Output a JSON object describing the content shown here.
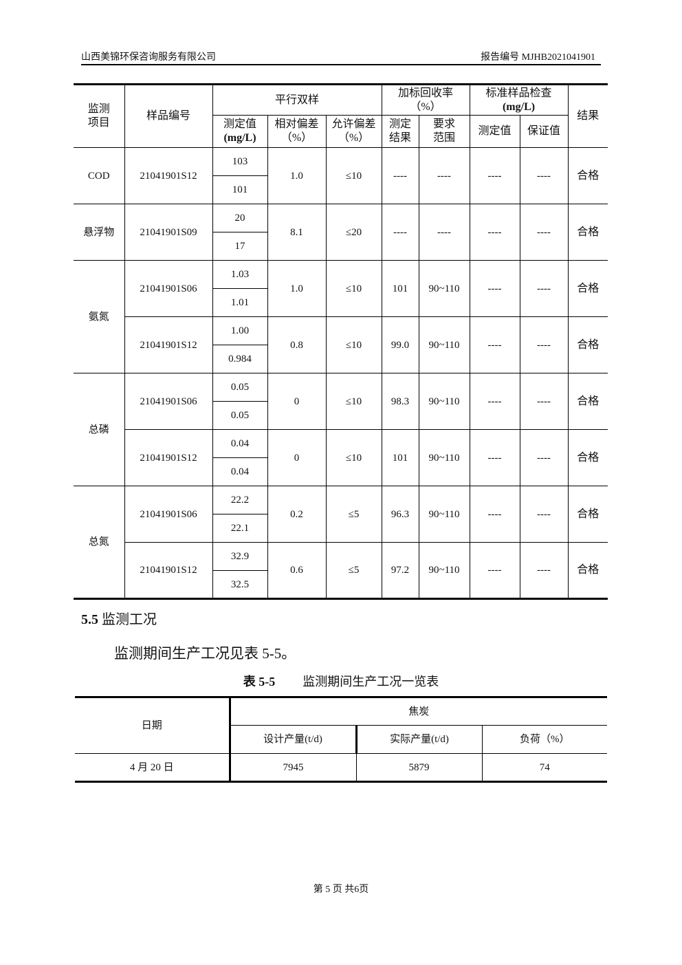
{
  "header": {
    "company": "山西美锦环保咨询服务有限公司",
    "report_no": "报告编号 MJHB2021041901"
  },
  "qc_table": {
    "headers": {
      "item": "监测项目",
      "sample_id": "样品编号",
      "parallel": "平行双样",
      "spike": "加标回收率",
      "spike_unit": "（%）",
      "std_check": "标准样品检查",
      "std_unit": "(mg/L)",
      "result": "结果",
      "measured": "测定值",
      "measured_unit": "(mg/L)",
      "rel_dev": "相对偏差（%）",
      "allow_dev": "允许偏差（%）",
      "spike_result": "测定结果",
      "spike_range": "要求范围",
      "std_measured": "测定值",
      "std_guarantee": "保证值"
    },
    "items": [
      {
        "name": "COD",
        "samples": [
          {
            "id": "21041901S12",
            "values": [
              "103",
              "101"
            ],
            "rel": "1.0",
            "allow": "≤10",
            "spike": "----",
            "range": "----",
            "std_m": "----",
            "std_g": "----",
            "result": "合格"
          }
        ]
      },
      {
        "name": "悬浮物",
        "samples": [
          {
            "id": "21041901S09",
            "values": [
              "20",
              "17"
            ],
            "rel": "8.1",
            "allow": "≤20",
            "spike": "----",
            "range": "----",
            "std_m": "----",
            "std_g": "----",
            "result": "合格"
          }
        ]
      },
      {
        "name": "氨氮",
        "samples": [
          {
            "id": "21041901S06",
            "values": [
              "1.03",
              "1.01"
            ],
            "rel": "1.0",
            "allow": "≤10",
            "spike": "101",
            "range": "90~110",
            "std_m": "----",
            "std_g": "----",
            "result": "合格"
          },
          {
            "id": "21041901S12",
            "values": [
              "1.00",
              "0.984"
            ],
            "rel": "0.8",
            "allow": "≤10",
            "spike": "99.0",
            "range": "90~110",
            "std_m": "----",
            "std_g": "----",
            "result": "合格"
          }
        ]
      },
      {
        "name": "总磷",
        "samples": [
          {
            "id": "21041901S06",
            "values": [
              "0.05",
              "0.05"
            ],
            "rel": "0",
            "allow": "≤10",
            "spike": "98.3",
            "range": "90~110",
            "std_m": "----",
            "std_g": "----",
            "result": "合格"
          },
          {
            "id": "21041901S12",
            "values": [
              "0.04",
              "0.04"
            ],
            "rel": "0",
            "allow": "≤10",
            "spike": "101",
            "range": "90~110",
            "std_m": "----",
            "std_g": "----",
            "result": "合格"
          }
        ]
      },
      {
        "name": "总氮",
        "samples": [
          {
            "id": "21041901S06",
            "values": [
              "22.2",
              "22.1"
            ],
            "rel": "0.2",
            "allow": "≤5",
            "spike": "96.3",
            "range": "90~110",
            "std_m": "----",
            "std_g": "----",
            "result": "合格"
          },
          {
            "id": "21041901S12",
            "values": [
              "32.9",
              "32.5"
            ],
            "rel": "0.6",
            "allow": "≤5",
            "spike": "97.2",
            "range": "90~110",
            "std_m": "----",
            "std_g": "----",
            "result": "合格"
          }
        ]
      }
    ]
  },
  "section": {
    "number": "5.5",
    "title": "监测工况",
    "paragraph": "监测期间生产工况见表 5-5。"
  },
  "caption": {
    "number": "表 5-5",
    "title": "监测期间生产工况一览表"
  },
  "prod_table": {
    "date_header": "日期",
    "group_header": "焦炭",
    "columns": [
      "设计产量(t/d)",
      "实际产量(t/d)",
      "负荷（%）"
    ],
    "rows": [
      {
        "date": "4 月 20 日",
        "design": "7945",
        "actual": "5879",
        "load": "74"
      }
    ]
  },
  "footer": {
    "page": "第 5 页 共6页"
  }
}
